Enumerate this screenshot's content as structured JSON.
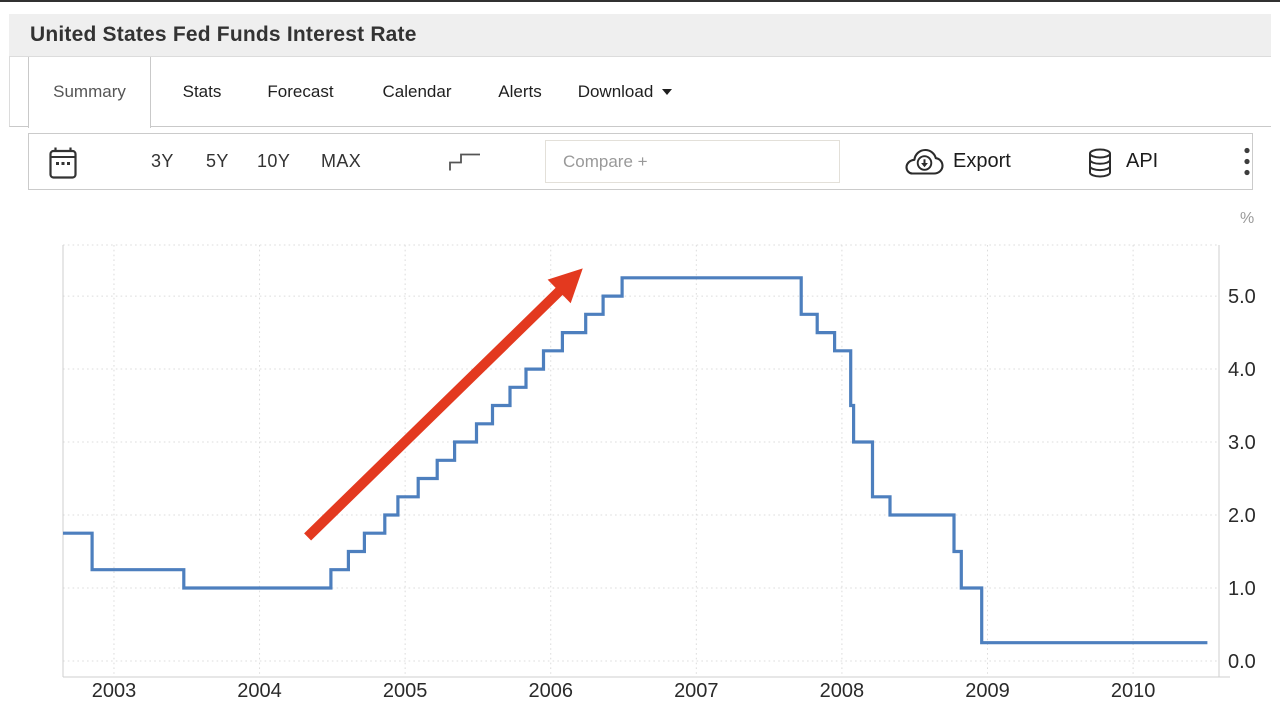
{
  "window": {
    "title": "United States Fed Funds Interest Rate"
  },
  "nav": {
    "tabs": [
      {
        "label": "Summary",
        "active": true
      },
      {
        "label": "Stats",
        "active": false
      },
      {
        "label": "Forecast",
        "active": false
      },
      {
        "label": "Calendar",
        "active": false
      },
      {
        "label": "Alerts",
        "active": false
      },
      {
        "label": "Download",
        "active": false,
        "has_caret": true
      }
    ]
  },
  "toolbar": {
    "range_buttons": [
      "3Y",
      "5Y",
      "10Y",
      "MAX"
    ],
    "compare_placeholder": "Compare +",
    "export_label": "Export",
    "api_label": "API"
  },
  "chart_data": {
    "type": "line",
    "step": "after",
    "title": "United States Fed Funds Interest Rate",
    "unit": "%",
    "x_axis": {
      "ticks": [
        2003,
        2004,
        2005,
        2006,
        2007,
        2008,
        2009,
        2010
      ],
      "range": [
        2002.65,
        2010.59
      ],
      "grid": true
    },
    "y_axis": {
      "tick_values": [
        0,
        1,
        2,
        3,
        4,
        5
      ],
      "labels": [
        "0.0",
        "1.0",
        "2.0",
        "3.0",
        "4.0",
        "5.0"
      ],
      "range": [
        -0.22,
        5.7
      ],
      "unit": "%",
      "position": "right",
      "grid": true
    },
    "series": [
      {
        "name": "Fed Funds Rate",
        "points": [
          [
            2002.65,
            1.75
          ],
          [
            2002.85,
            1.25
          ],
          [
            2003.48,
            1.0
          ],
          [
            2004.49,
            1.25
          ],
          [
            2004.61,
            1.5
          ],
          [
            2004.72,
            1.75
          ],
          [
            2004.86,
            2.0
          ],
          [
            2004.95,
            2.25
          ],
          [
            2005.09,
            2.5
          ],
          [
            2005.22,
            2.75
          ],
          [
            2005.34,
            3.0
          ],
          [
            2005.49,
            3.25
          ],
          [
            2005.6,
            3.5
          ],
          [
            2005.72,
            3.75
          ],
          [
            2005.83,
            4.0
          ],
          [
            2005.95,
            4.25
          ],
          [
            2006.08,
            4.5
          ],
          [
            2006.24,
            4.75
          ],
          [
            2006.36,
            5.0
          ],
          [
            2006.49,
            5.25
          ],
          [
            2007.72,
            4.75
          ],
          [
            2007.83,
            4.5
          ],
          [
            2007.95,
            4.25
          ],
          [
            2008.06,
            3.5
          ],
          [
            2008.08,
            3.0
          ],
          [
            2008.21,
            2.25
          ],
          [
            2008.33,
            2.0
          ],
          [
            2008.77,
            1.5
          ],
          [
            2008.82,
            1.0
          ],
          [
            2008.96,
            0.25
          ],
          [
            2010.51,
            0.25
          ]
        ]
      }
    ],
    "annotations": [
      {
        "type": "arrow",
        "from": [
          2004.33,
          1.7
        ],
        "to": [
          2006.22,
          5.38
        ],
        "color": "#e3391f"
      }
    ],
    "legend": "off"
  },
  "colors": {
    "line": "#4d7fbe",
    "arrow": "#e3391f",
    "grid": "#dcdcdc",
    "axis_border": "#cfcfcf",
    "tick_text": "#2a2a2a",
    "unit_text": "#9a9a9a"
  }
}
